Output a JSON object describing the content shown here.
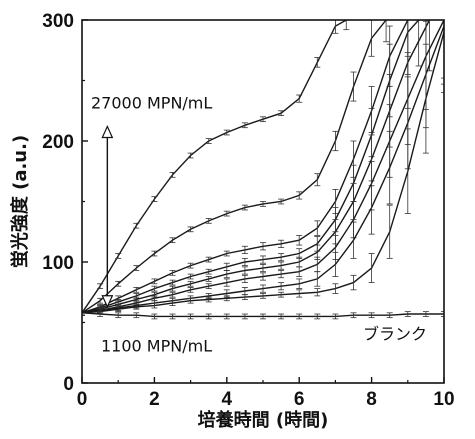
{
  "chart_data": {
    "type": "line",
    "title": "",
    "xlabel": "培養時間 (時間)",
    "ylabel": "蛍光強度 (a.u.)",
    "xlim": [
      0,
      10
    ],
    "ylim": [
      0,
      300
    ],
    "xticks": [
      0,
      2,
      4,
      6,
      8,
      10
    ],
    "yticks": [
      0,
      100,
      200,
      300
    ],
    "grid": false,
    "annotations": {
      "high": "27000 MPN/mL",
      "low": "1100 MPN/mL",
      "blank": "ブランク"
    },
    "series": [
      {
        "x": [
          0,
          0.5,
          1,
          1.5,
          2,
          2.5,
          3,
          3.5,
          4,
          4.5,
          5,
          5.5,
          6,
          6.5,
          7,
          7.3
        ],
        "y": [
          58,
          80,
          105,
          130,
          152,
          172,
          188,
          200,
          207,
          213,
          218,
          223,
          235,
          265,
          295,
          300
        ],
        "err": [
          2,
          2,
          2,
          2,
          2,
          2,
          2,
          2,
          2,
          2,
          2,
          2,
          3,
          4,
          6,
          8
        ]
      },
      {
        "x": [
          0,
          0.5,
          1,
          1.5,
          2,
          2.5,
          3,
          3.5,
          4,
          4.5,
          5,
          5.5,
          6,
          6.5,
          7,
          7.5,
          8,
          8.4
        ],
        "y": [
          58,
          68,
          82,
          95,
          107,
          118,
          127,
          134,
          140,
          145,
          148,
          150,
          155,
          168,
          200,
          245,
          285,
          300
        ],
        "err": [
          2,
          2,
          2,
          2,
          2,
          2,
          2,
          2,
          2,
          2,
          2,
          2,
          3,
          5,
          8,
          12,
          15,
          18
        ]
      },
      {
        "x": [
          0,
          0.5,
          1,
          1.5,
          2,
          2.5,
          3,
          3.5,
          4,
          4.5,
          5,
          5.5,
          6,
          6.5,
          7,
          7.5,
          8,
          8.5,
          9
        ],
        "y": [
          58,
          63,
          70,
          77,
          84,
          91,
          97,
          102,
          107,
          110,
          113,
          115,
          118,
          128,
          150,
          185,
          225,
          270,
          300
        ],
        "err": [
          2,
          2,
          2,
          2,
          2,
          2,
          2,
          2,
          2,
          3,
          3,
          3,
          4,
          6,
          10,
          15,
          20,
          25,
          30
        ]
      },
      {
        "x": [
          0,
          0.5,
          1,
          1.5,
          2,
          2.5,
          3,
          3.5,
          4,
          4.5,
          5,
          5.5,
          6,
          6.5,
          7,
          7.5,
          8,
          8.5,
          9,
          9.3
        ],
        "y": [
          58,
          62,
          67,
          72,
          78,
          83,
          88,
          92,
          96,
          100,
          102,
          104,
          107,
          115,
          135,
          165,
          205,
          250,
          290,
          300
        ],
        "err": [
          2,
          2,
          2,
          2,
          2,
          2,
          2,
          2,
          3,
          3,
          3,
          3,
          4,
          6,
          10,
          15,
          22,
          30,
          35,
          38
        ]
      },
      {
        "x": [
          0,
          0.5,
          1,
          1.5,
          2,
          2.5,
          3,
          3.5,
          4,
          4.5,
          5,
          5.5,
          6,
          6.5,
          7,
          7.5,
          8,
          8.5,
          9,
          9.6
        ],
        "y": [
          58,
          61,
          65,
          69,
          73,
          78,
          82,
          86,
          90,
          93,
          95,
          97,
          100,
          108,
          125,
          150,
          185,
          225,
          265,
          300
        ],
        "err": [
          2,
          2,
          2,
          2,
          2,
          2,
          2,
          2,
          3,
          3,
          3,
          3,
          4,
          6,
          10,
          15,
          22,
          30,
          38,
          42
        ]
      },
      {
        "x": [
          0,
          0.5,
          1,
          1.5,
          2,
          2.5,
          3,
          3.5,
          4,
          4.5,
          5,
          5.5,
          6,
          6.5,
          7,
          7.5,
          8,
          8.5,
          9,
          9.5,
          10
        ],
        "y": [
          58,
          60,
          63,
          66,
          70,
          73,
          77,
          80,
          83,
          86,
          88,
          90,
          92,
          98,
          112,
          135,
          165,
          200,
          235,
          270,
          300
        ],
        "err": [
          2,
          2,
          2,
          2,
          2,
          2,
          2,
          2,
          3,
          3,
          3,
          3,
          4,
          6,
          10,
          15,
          22,
          30,
          38,
          44,
          48
        ]
      },
      {
        "x": [
          0,
          0.5,
          1,
          1.5,
          2,
          2.5,
          3,
          3.5,
          4,
          4.5,
          5,
          5.5,
          6,
          6.5,
          7,
          7.5,
          8,
          8.5,
          9,
          9.5,
          10
        ],
        "y": [
          58,
          60,
          62,
          64,
          66,
          68,
          70,
          72,
          74,
          76,
          78,
          80,
          82,
          86,
          98,
          118,
          145,
          178,
          215,
          255,
          295
        ],
        "err": [
          2,
          2,
          2,
          2,
          2,
          2,
          2,
          2,
          3,
          3,
          3,
          3,
          4,
          6,
          10,
          15,
          22,
          30,
          38,
          44,
          48
        ]
      },
      {
        "x": [
          0,
          0.5,
          1,
          1.5,
          2,
          2.5,
          3,
          3.5,
          4,
          4.5,
          5,
          5.5,
          6,
          6.5,
          7,
          7.5,
          8,
          8.5,
          9,
          9.5,
          10
        ],
        "y": [
          58,
          59,
          61,
          63,
          64,
          66,
          68,
          69,
          70,
          71,
          72,
          73,
          74,
          75,
          78,
          83,
          95,
          125,
          175,
          235,
          290
        ],
        "err": [
          2,
          2,
          2,
          2,
          2,
          2,
          2,
          2,
          2,
          2,
          2,
          2,
          3,
          3,
          4,
          6,
          12,
          22,
          35,
          45,
          50
        ]
      },
      {
        "x": [
          0,
          0.5,
          1,
          1.5,
          2,
          2.5,
          3,
          3.5,
          4,
          4.5,
          5,
          5.5,
          6,
          6.5,
          7,
          7.5,
          8,
          8.5,
          9,
          9.5,
          10
        ],
        "y": [
          58,
          57,
          56,
          56,
          55,
          55,
          55,
          55,
          55,
          55,
          55,
          55,
          55,
          55,
          55,
          56,
          56,
          56,
          57,
          57,
          57
        ],
        "err": [
          2,
          2,
          2,
          2,
          2,
          2,
          2,
          2,
          2,
          2,
          2,
          2,
          2,
          2,
          2,
          2,
          2,
          2,
          2,
          2,
          2
        ]
      }
    ]
  }
}
